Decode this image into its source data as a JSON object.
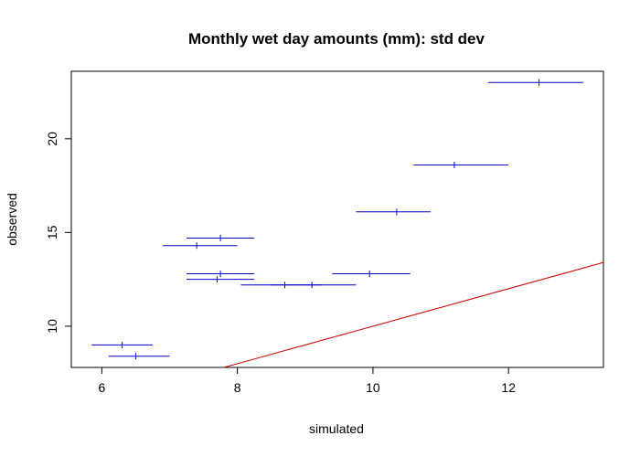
{
  "chart_data": {
    "type": "scatter",
    "title": "Monthly wet day amounts (mm): std dev",
    "xlabel": "simulated",
    "ylabel": "observed",
    "xlim": [
      5.55,
      13.4
    ],
    "ylim": [
      7.8,
      23.6
    ],
    "x_ticks": [
      6,
      8,
      10,
      12
    ],
    "y_ticks": [
      10,
      15,
      20
    ],
    "grid": false,
    "legend": "none",
    "series": [
      {
        "color": "#0000cc",
        "points": [
          {
            "x": 6.3,
            "y": 9.0,
            "x_low": 5.85,
            "x_high": 6.75
          },
          {
            "x": 6.5,
            "y": 8.4,
            "x_low": 6.1,
            "x_high": 7.0
          },
          {
            "x": 7.4,
            "y": 14.3,
            "x_low": 6.9,
            "x_high": 8.0
          },
          {
            "x": 7.75,
            "y": 14.7,
            "x_low": 7.25,
            "x_high": 8.25
          },
          {
            "x": 7.75,
            "y": 12.8,
            "x_low": 7.25,
            "x_high": 8.25
          },
          {
            "x": 7.7,
            "y": 12.5,
            "x_low": 7.25,
            "x_high": 8.25
          },
          {
            "x": 8.7,
            "y": 12.2,
            "x_low": 8.05,
            "x_high": 9.25
          },
          {
            "x": 9.1,
            "y": 12.2,
            "x_low": 8.5,
            "x_high": 9.75
          },
          {
            "x": 9.95,
            "y": 12.8,
            "x_low": 9.4,
            "x_high": 10.55
          },
          {
            "x": 10.35,
            "y": 16.1,
            "x_low": 9.75,
            "x_high": 10.85
          },
          {
            "x": 11.2,
            "y": 18.6,
            "x_low": 10.6,
            "x_high": 12.0
          },
          {
            "x": 12.45,
            "y": 23.0,
            "x_low": 11.7,
            "x_high": 13.1
          }
        ]
      }
    ],
    "reference_line": {
      "type": "identity",
      "color": "#cc0000"
    }
  }
}
